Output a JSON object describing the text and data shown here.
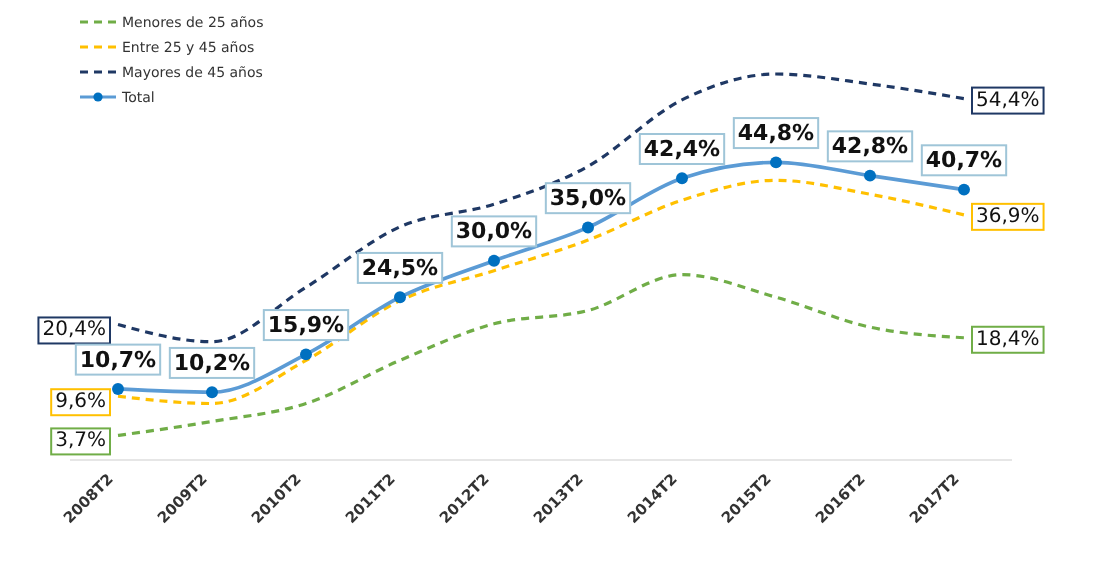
{
  "chart_data": {
    "type": "line",
    "categories": [
      "2008T2",
      "2009T2",
      "2010T2",
      "2011T2",
      "2012T2",
      "2013T2",
      "2014T2",
      "2015T2",
      "2016T2",
      "2017T2"
    ],
    "tick_labels": "x",
    "legend": "top left",
    "grid": false,
    "series": [
      {
        "name": "Menores de 25 años",
        "color": "#70ad47",
        "line_style": "dashed",
        "marker": "none",
        "values": [
          3.7,
          5.8,
          8.5,
          15.0,
          20.5,
          22.5,
          27.9,
          24.5,
          20.0,
          18.4
        ],
        "value_labels": [
          "3,7%",
          null,
          null,
          null,
          null,
          null,
          null,
          null,
          null,
          "18,4%"
        ]
      },
      {
        "name": "Entre 25 y 45 años",
        "color": "#ffc000",
        "line_style": "dashed",
        "marker": "none",
        "values": [
          9.6,
          8.5,
          15.0,
          24.0,
          28.5,
          33.1,
          39.1,
          42.1,
          40.0,
          36.9
        ],
        "value_labels": [
          "9,6%",
          null,
          null,
          null,
          null,
          null,
          null,
          null,
          null,
          "36,9%"
        ]
      },
      {
        "name": "Mayores de 45 años",
        "color": "#1f3864",
        "line_style": "dashed",
        "marker": "none",
        "values": [
          20.4,
          17.8,
          26.0,
          35.1,
          38.5,
          44.2,
          54.2,
          58.1,
          56.6,
          54.4
        ],
        "value_labels": [
          "20,4%",
          null,
          null,
          null,
          null,
          null,
          null,
          null,
          null,
          "54,4%"
        ]
      },
      {
        "name": "Total",
        "color": "#5b9bd5",
        "line_style": "solid",
        "marker": "circle",
        "data_labels": true,
        "values": [
          10.7,
          10.2,
          15.9,
          24.5,
          30.0,
          35.0,
          42.4,
          44.8,
          42.8,
          40.7
        ],
        "value_labels": [
          "10,7%",
          "10,2%",
          "15,9%",
          "24,5%",
          "30,0%",
          "35,0%",
          "42,4%",
          "44,8%",
          "42,8%",
          "40,7%"
        ]
      }
    ]
  }
}
